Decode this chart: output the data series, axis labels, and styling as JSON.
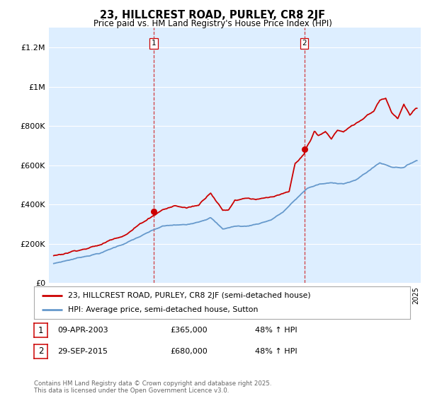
{
  "title": "23, HILLCREST ROAD, PURLEY, CR8 2JF",
  "subtitle": "Price paid vs. HM Land Registry's House Price Index (HPI)",
  "background_color": "#ffffff",
  "plot_bg_color": "#ddeeff",
  "grid_color": "#ccddee",
  "sale1_year": 2003.27,
  "sale1_price": 365000,
  "sale2_year": 2015.75,
  "sale2_price": 680000,
  "legend_entry1": "23, HILLCREST ROAD, PURLEY, CR8 2JF (semi-detached house)",
  "legend_entry2": "HPI: Average price, semi-detached house, Sutton",
  "table_row1": [
    "1",
    "09-APR-2003",
    "£365,000",
    "48% ↑ HPI"
  ],
  "table_row2": [
    "2",
    "29-SEP-2015",
    "£680,000",
    "48% ↑ HPI"
  ],
  "footer": "Contains HM Land Registry data © Crown copyright and database right 2025.\nThis data is licensed under the Open Government Licence v3.0.",
  "ylim": [
    0,
    1300000
  ],
  "yticks": [
    0,
    200000,
    400000,
    600000,
    800000,
    1000000,
    1200000
  ],
  "ytick_labels": [
    "£0",
    "£200K",
    "£400K",
    "£600K",
    "£800K",
    "£1M",
    "£1.2M"
  ],
  "red_color": "#cc0000",
  "blue_color": "#6699cc",
  "dashed_color": "#cc0000",
  "xlim_start": 1995,
  "xlim_end": 2025
}
